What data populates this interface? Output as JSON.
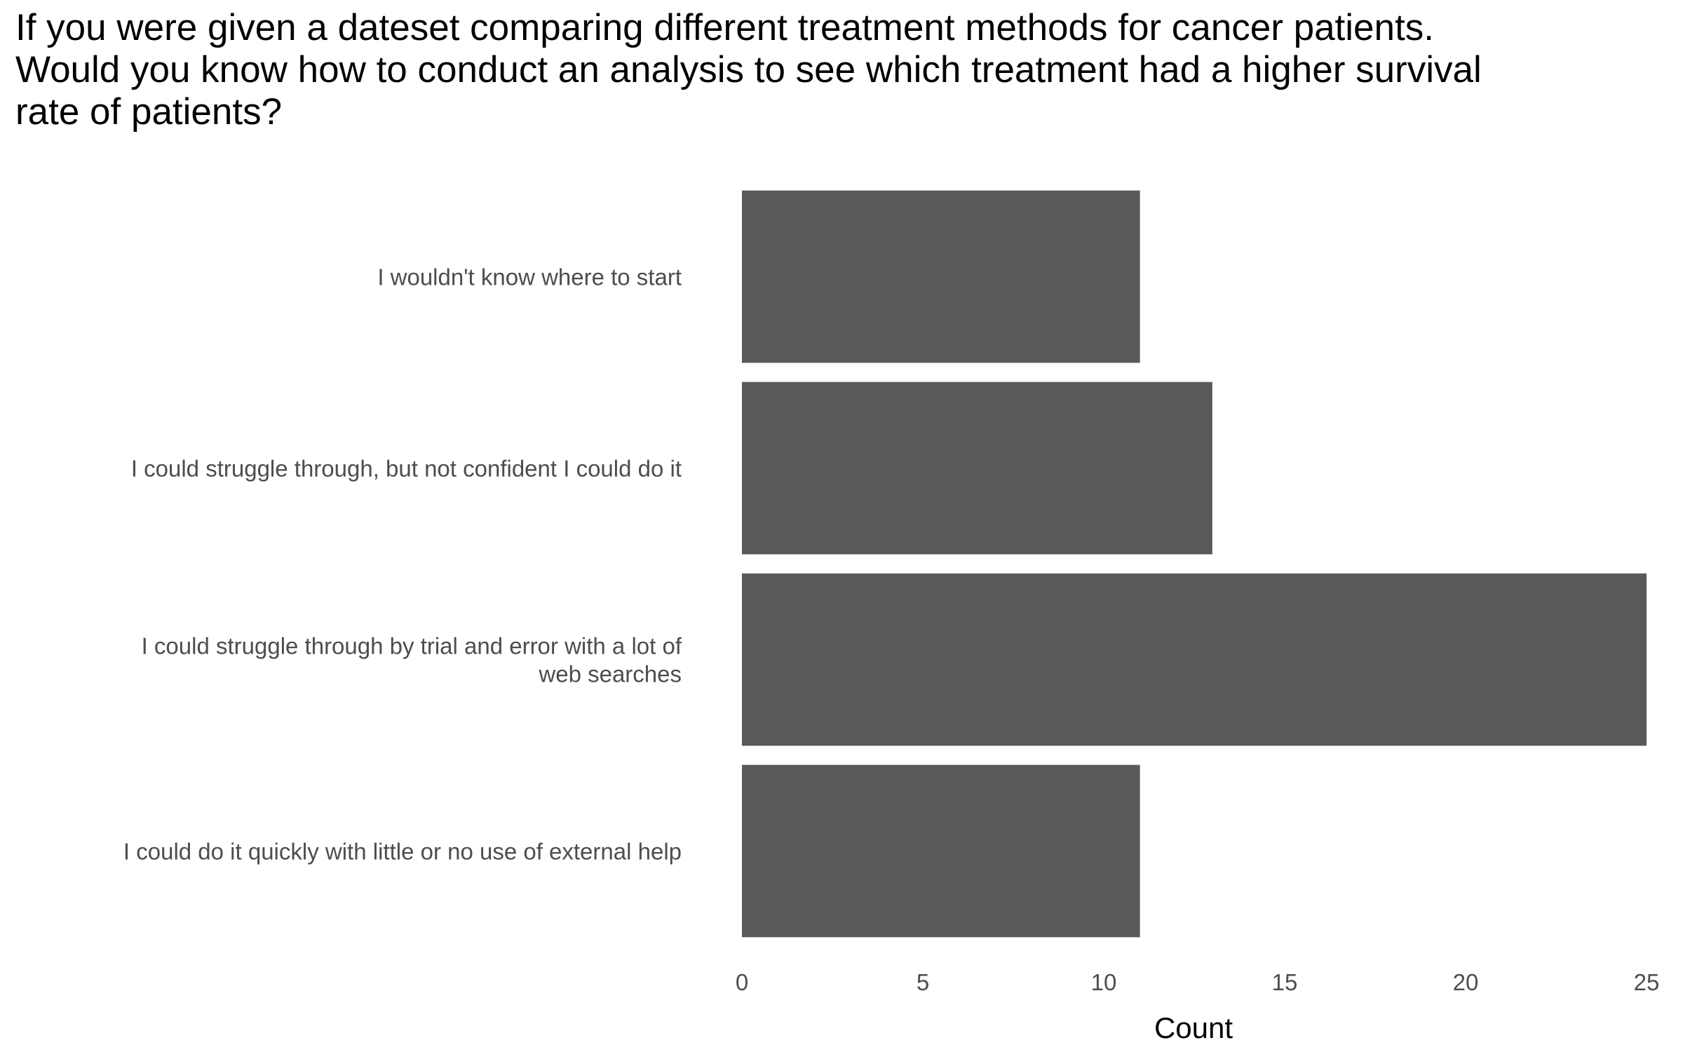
{
  "chart_data": {
    "type": "bar",
    "orientation": "horizontal",
    "title": "If you were given a dateset comparing different treatment methods for cancer patients. Would you know how to conduct an analysis to see which treatment had a higher survival rate of patients?",
    "xlabel": "Count",
    "ylabel": "",
    "categories": [
      "I wouldn't know where to start",
      "I could struggle through, but not confident I could do it",
      "I could struggle through by trial and error with a lot of web searches",
      "I could do it quickly with little or no use of external help"
    ],
    "category_label_lines": [
      [
        "I wouldn't know where to start"
      ],
      [
        "I could struggle through, but not confident I could do it"
      ],
      [
        "I could struggle through by trial and error with a lot of",
        "web searches"
      ],
      [
        "I could do it quickly with little or no use of external help"
      ]
    ],
    "values": [
      11,
      13,
      25,
      11
    ],
    "xlim": [
      0,
      25
    ],
    "xticks": [
      "0",
      "5",
      "10",
      "15",
      "20",
      "25"
    ],
    "grid": false,
    "bar_color": "#595959"
  }
}
